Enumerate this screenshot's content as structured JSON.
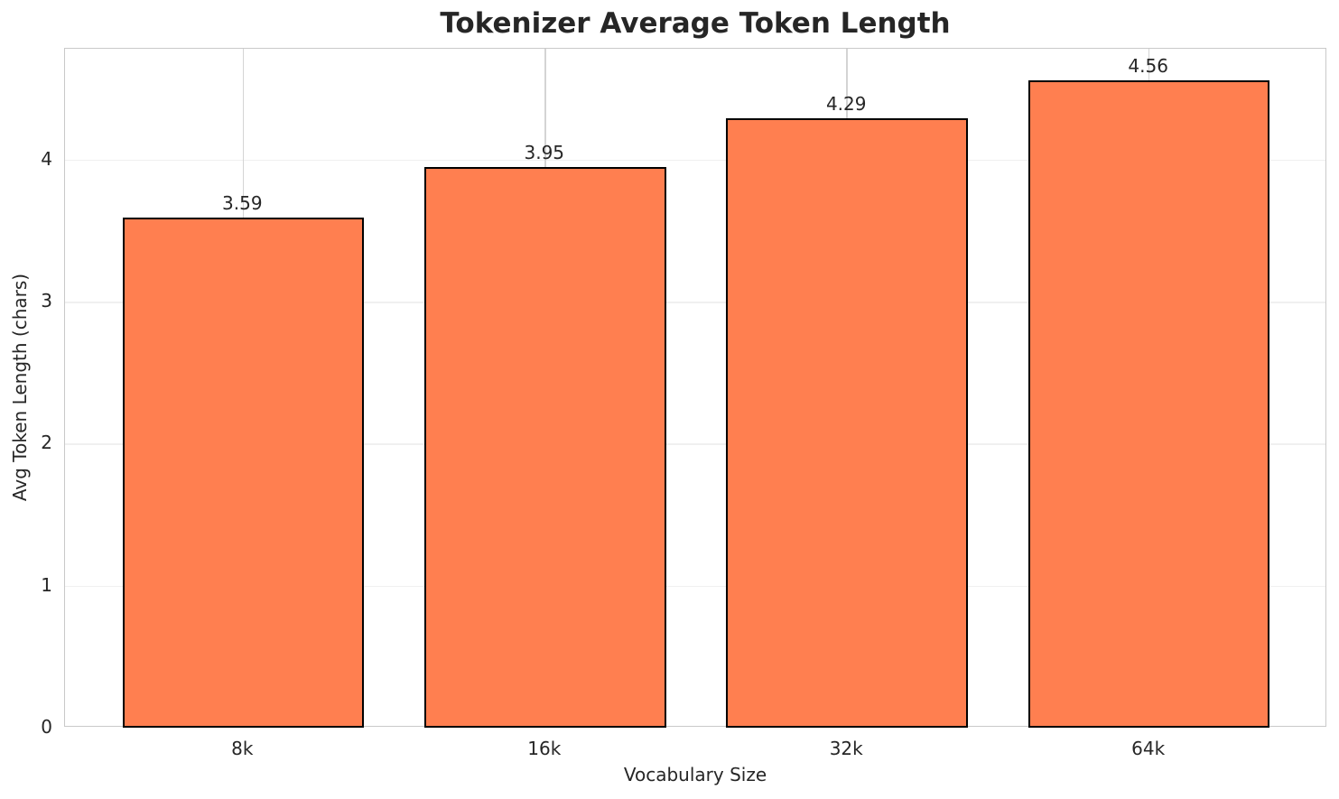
{
  "chart_data": {
    "type": "bar",
    "title": "Tokenizer Average Token Length",
    "xlabel": "Vocabulary Size",
    "ylabel": "Avg Token Length (chars)",
    "categories": [
      "8k",
      "16k",
      "32k",
      "64k"
    ],
    "values": [
      3.59,
      3.95,
      4.29,
      4.56
    ],
    "value_labels": [
      "3.59",
      "3.95",
      "4.29",
      "4.56"
    ],
    "yticks": [
      0,
      1,
      2,
      3,
      4
    ],
    "ylim": [
      0,
      4.78
    ],
    "xlim": [
      -0.59,
      3.59
    ],
    "bar_width": 0.8,
    "grid": true,
    "legend": false,
    "colors": {
      "bar_fill": "#ff7f50",
      "bar_edge": "#000000",
      "grid_horizontal": "#f0f0f0",
      "grid_vertical": "#d4d4d4",
      "spine": "#c9c9c9",
      "text": "#262626",
      "background": "#ffffff"
    }
  }
}
